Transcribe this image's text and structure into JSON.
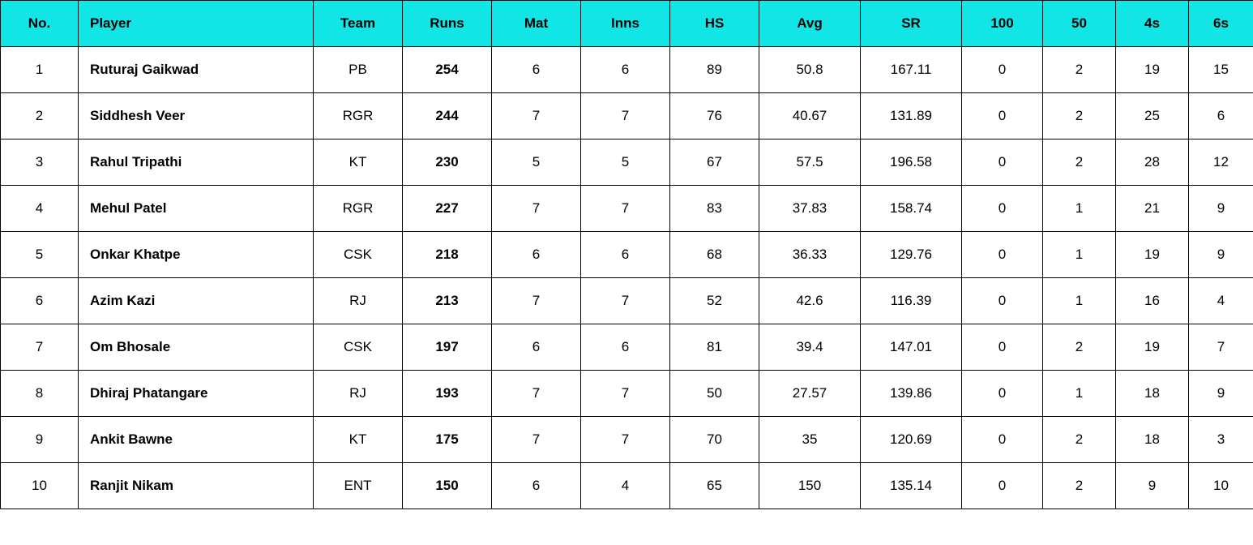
{
  "table": {
    "header_bg_color": "#11e5e6",
    "header_text_color": "#000000",
    "cell_text_color": "#000000",
    "border_color": "#000000",
    "row_bg_color": "#ffffff",
    "header_fontsize": 17,
    "cell_fontsize": 17,
    "columns": [
      {
        "key": "no",
        "label": "No.",
        "align": "center"
      },
      {
        "key": "player",
        "label": "Player",
        "align": "left",
        "bold": true
      },
      {
        "key": "team",
        "label": "Team",
        "align": "center"
      },
      {
        "key": "runs",
        "label": "Runs",
        "align": "center",
        "bold": true
      },
      {
        "key": "mat",
        "label": "Mat",
        "align": "center"
      },
      {
        "key": "inns",
        "label": "Inns",
        "align": "center"
      },
      {
        "key": "hs",
        "label": "HS",
        "align": "center"
      },
      {
        "key": "avg",
        "label": "Avg",
        "align": "center"
      },
      {
        "key": "sr",
        "label": "SR",
        "align": "center"
      },
      {
        "key": "hundreds",
        "label": "100",
        "align": "center"
      },
      {
        "key": "fifties",
        "label": "50",
        "align": "center"
      },
      {
        "key": "fours",
        "label": "4s",
        "align": "center"
      },
      {
        "key": "sixes",
        "label": "6s",
        "align": "center"
      }
    ],
    "rows": [
      {
        "no": "1",
        "player": "Ruturaj Gaikwad",
        "team": "PB",
        "runs": "254",
        "mat": "6",
        "inns": "6",
        "hs": "89",
        "avg": "50.8",
        "sr": "167.11",
        "hundreds": "0",
        "fifties": "2",
        "fours": "19",
        "sixes": "15"
      },
      {
        "no": "2",
        "player": "Siddhesh Veer",
        "team": "RGR",
        "runs": "244",
        "mat": "7",
        "inns": "7",
        "hs": "76",
        "avg": "40.67",
        "sr": "131.89",
        "hundreds": "0",
        "fifties": "2",
        "fours": "25",
        "sixes": "6"
      },
      {
        "no": "3",
        "player": "Rahul Tripathi",
        "team": "KT",
        "runs": "230",
        "mat": "5",
        "inns": "5",
        "hs": "67",
        "avg": "57.5",
        "sr": "196.58",
        "hundreds": "0",
        "fifties": "2",
        "fours": "28",
        "sixes": "12"
      },
      {
        "no": "4",
        "player": "Mehul Patel",
        "team": "RGR",
        "runs": "227",
        "mat": "7",
        "inns": "7",
        "hs": "83",
        "avg": "37.83",
        "sr": "158.74",
        "hundreds": "0",
        "fifties": "1",
        "fours": "21",
        "sixes": "9"
      },
      {
        "no": "5",
        "player": "Onkar Khatpe",
        "team": "CSK",
        "runs": "218",
        "mat": "6",
        "inns": "6",
        "hs": "68",
        "avg": "36.33",
        "sr": "129.76",
        "hundreds": "0",
        "fifties": "1",
        "fours": "19",
        "sixes": "9"
      },
      {
        "no": "6",
        "player": "Azim Kazi",
        "team": "RJ",
        "runs": "213",
        "mat": "7",
        "inns": "7",
        "hs": "52",
        "avg": "42.6",
        "sr": "116.39",
        "hundreds": "0",
        "fifties": "1",
        "fours": "16",
        "sixes": "4"
      },
      {
        "no": "7",
        "player": "Om Bhosale",
        "team": "CSK",
        "runs": "197",
        "mat": "6",
        "inns": "6",
        "hs": "81",
        "avg": "39.4",
        "sr": "147.01",
        "hundreds": "0",
        "fifties": "2",
        "fours": "19",
        "sixes": "7"
      },
      {
        "no": "8",
        "player": "Dhiraj Phatangare",
        "team": "RJ",
        "runs": "193",
        "mat": "7",
        "inns": "7",
        "hs": "50",
        "avg": "27.57",
        "sr": "139.86",
        "hundreds": "0",
        "fifties": "1",
        "fours": "18",
        "sixes": "9"
      },
      {
        "no": "9",
        "player": "Ankit Bawne",
        "team": "KT",
        "runs": "175",
        "mat": "7",
        "inns": "7",
        "hs": "70",
        "avg": "35",
        "sr": "120.69",
        "hundreds": "0",
        "fifties": "2",
        "fours": "18",
        "sixes": "3"
      },
      {
        "no": "10",
        "player": "Ranjit Nikam",
        "team": "ENT",
        "runs": "150",
        "mat": "6",
        "inns": "4",
        "hs": "65",
        "avg": "150",
        "sr": "135.14",
        "hundreds": "0",
        "fifties": "2",
        "fours": "9",
        "sixes": "10"
      }
    ]
  }
}
